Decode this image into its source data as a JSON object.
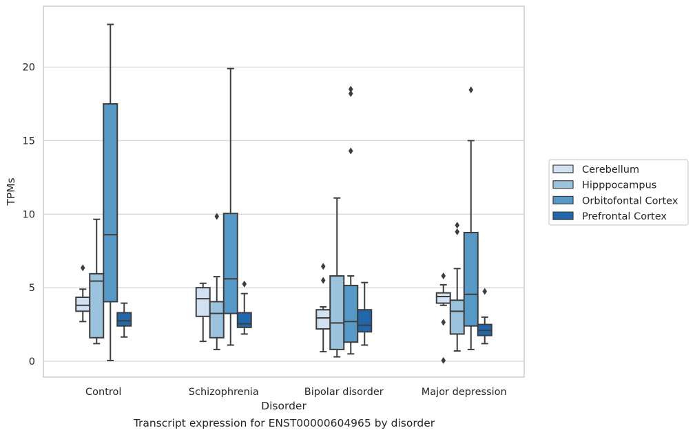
{
  "chart_data": {
    "type": "boxplot",
    "xlabel": "Disorder",
    "ylabel": "TPMs",
    "caption": "Transcript expression for ENST00000604965 by disorder",
    "categories": [
      "Control",
      "Schizophrenia",
      "Bipolar disorder",
      "Major depression"
    ],
    "ylim": [
      -1,
      24
    ],
    "yticks": [
      0,
      5,
      10,
      15,
      20
    ],
    "grid": true,
    "legend_position": "right",
    "series": [
      {
        "name": "Cerebellum",
        "color": "#d2e1f1",
        "boxes": [
          {
            "whisker_low": 2.7,
            "q1": 3.4,
            "median": 3.8,
            "q3": 4.35,
            "whisker_high": 4.9,
            "outliers": [
              6.35
            ]
          },
          {
            "whisker_low": 1.35,
            "q1": 3.05,
            "median": 4.25,
            "q3": 5.0,
            "whisker_high": 5.3,
            "outliers": []
          },
          {
            "whisker_low": 0.65,
            "q1": 2.2,
            "median": 2.95,
            "q3": 3.5,
            "whisker_high": 3.7,
            "outliers": [
              5.5,
              6.45
            ]
          },
          {
            "whisker_low": 3.8,
            "q1": 3.95,
            "median": 4.4,
            "q3": 4.65,
            "whisker_high": 5.2,
            "outliers": [
              0.05,
              2.65,
              5.8
            ]
          }
        ]
      },
      {
        "name": "Hipppocampus",
        "color": "#9bc3dd",
        "boxes": [
          {
            "whisker_low": 1.2,
            "q1": 1.6,
            "median": 5.45,
            "q3": 5.95,
            "whisker_high": 9.65,
            "outliers": []
          },
          {
            "whisker_low": 0.8,
            "q1": 1.6,
            "median": 3.25,
            "q3": 4.05,
            "whisker_high": 5.75,
            "outliers": [
              9.85
            ]
          },
          {
            "whisker_low": 0.3,
            "q1": 0.8,
            "median": 2.6,
            "q3": 5.8,
            "whisker_high": 11.1,
            "outliers": []
          },
          {
            "whisker_low": 0.7,
            "q1": 1.85,
            "median": 3.4,
            "q3": 4.15,
            "whisker_high": 6.3,
            "outliers": [
              8.8,
              9.25
            ]
          }
        ]
      },
      {
        "name": "Orbitofontal Cortex",
        "color": "#5698c6",
        "boxes": [
          {
            "whisker_low": 0.05,
            "q1": 4.05,
            "median": 8.6,
            "q3": 17.5,
            "whisker_high": 22.9,
            "outliers": []
          },
          {
            "whisker_low": 1.1,
            "q1": 3.25,
            "median": 5.6,
            "q3": 10.05,
            "whisker_high": 19.9,
            "outliers": []
          },
          {
            "whisker_low": 0.5,
            "q1": 1.3,
            "median": 2.7,
            "q3": 5.15,
            "whisker_high": 5.8,
            "outliers": [
              14.3,
              18.2,
              18.5
            ]
          },
          {
            "whisker_low": 0.8,
            "q1": 2.4,
            "median": 4.55,
            "q3": 8.75,
            "whisker_high": 15.0,
            "outliers": [
              18.45
            ]
          }
        ]
      },
      {
        "name": "Prefrontal Cortex",
        "color": "#2266ac",
        "boxes": [
          {
            "whisker_low": 1.65,
            "q1": 2.4,
            "median": 2.75,
            "q3": 3.3,
            "whisker_high": 3.95,
            "outliers": []
          },
          {
            "whisker_low": 1.85,
            "q1": 2.3,
            "median": 2.55,
            "q3": 3.3,
            "whisker_high": 4.6,
            "outliers": [
              5.25
            ]
          },
          {
            "whisker_low": 1.1,
            "q1": 2.0,
            "median": 2.45,
            "q3": 3.5,
            "whisker_high": 5.35,
            "outliers": []
          },
          {
            "whisker_low": 1.2,
            "q1": 1.75,
            "median": 2.1,
            "q3": 2.5,
            "whisker_high": 3.0,
            "outliers": [
              4.75
            ]
          }
        ]
      }
    ]
  }
}
